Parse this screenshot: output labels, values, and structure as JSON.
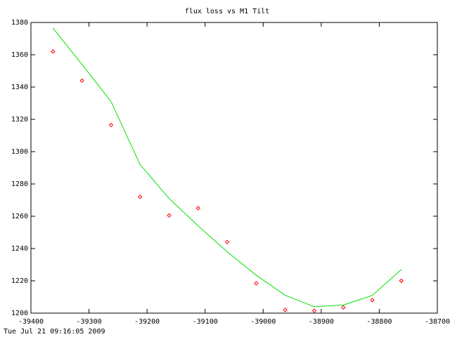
{
  "chart_data": {
    "type": "scatter",
    "title": "flux loss vs M1 Tilt",
    "timestamp": "Tue Jul 21 09:16:05 2009",
    "x": [
      -39362,
      -39312,
      -39262,
      -39212,
      -39162,
      -39112,
      -39062,
      -39012,
      -38962,
      -38912,
      -38862,
      -38812,
      -38762
    ],
    "series": [
      {
        "style": "points",
        "color": "#ff0000",
        "values": [
          1362,
          1344,
          1316.5,
          1272,
          1260.5,
          1265,
          1244,
          1218.5,
          1202,
          1201.5,
          1203.5,
          1208,
          1220
        ]
      },
      {
        "style": "line",
        "color": "#00e000",
        "values": [
          1376.5,
          1354,
          1331,
          1292,
          1271,
          1254,
          1238,
          1223.5,
          1211,
          1204,
          1205,
          1211,
          1227
        ]
      }
    ],
    "xlim": [
      -39400,
      -38700
    ],
    "xticks": [
      -39400,
      -39300,
      -39200,
      -39100,
      -39000,
      -38900,
      -38800,
      -38700
    ],
    "ylim": [
      1200,
      1380
    ],
    "yticks": [
      1200,
      1220,
      1240,
      1260,
      1280,
      1300,
      1320,
      1340,
      1360,
      1380
    ]
  }
}
